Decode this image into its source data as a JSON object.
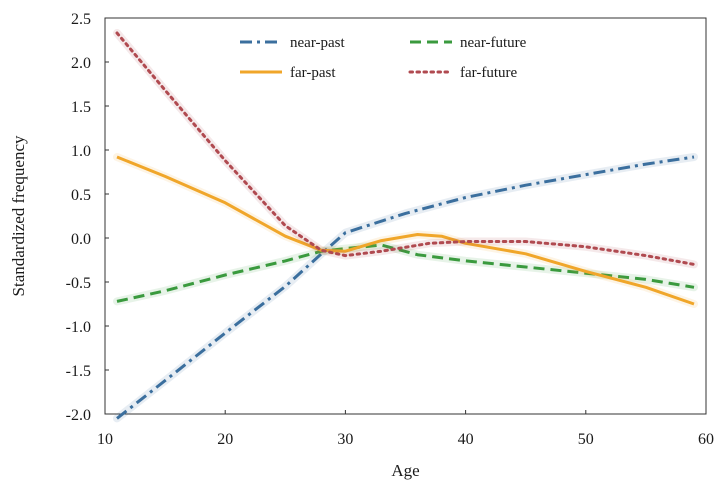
{
  "chart_data": {
    "type": "line",
    "title": "",
    "xlabel": "Age",
    "ylabel": "Standardized frequency",
    "xlim": [
      10,
      60
    ],
    "ylim": [
      -2.0,
      2.5
    ],
    "xticks": [
      "10",
      "20",
      "30",
      "40",
      "50",
      "60"
    ],
    "yticks": [
      "2.5",
      "2.0",
      "1.5",
      "1.0",
      "0.5",
      "0.0",
      "-0.5",
      "-1.0",
      "-1.5",
      "-2.0"
    ],
    "grid": false,
    "legend_position": "top-center",
    "series": [
      {
        "name": "near-past",
        "color": "#3b6f9e",
        "dash": "dash-dot",
        "x": [
          11,
          15,
          20,
          25,
          28,
          30,
          35,
          40,
          45,
          50,
          55,
          59
        ],
        "y": [
          -2.05,
          -1.62,
          -1.08,
          -0.55,
          -0.18,
          0.06,
          0.28,
          0.46,
          0.6,
          0.72,
          0.84,
          0.92
        ]
      },
      {
        "name": "near-future",
        "color": "#3a9a3e",
        "dash": "dashed",
        "x": [
          11,
          15,
          20,
          25,
          28,
          30,
          33,
          36,
          40,
          45,
          50,
          55,
          59
        ],
        "y": [
          -0.72,
          -0.6,
          -0.42,
          -0.26,
          -0.15,
          -0.12,
          -0.08,
          -0.19,
          -0.26,
          -0.33,
          -0.4,
          -0.47,
          -0.56
        ]
      },
      {
        "name": "far-past",
        "color": "#f0a62a",
        "dash": "solid",
        "x": [
          11,
          15,
          20,
          25,
          28,
          30,
          33,
          36,
          38,
          40,
          45,
          50,
          55,
          59
        ],
        "y": [
          0.92,
          0.7,
          0.4,
          0.02,
          -0.14,
          -0.15,
          -0.03,
          0.04,
          0.02,
          -0.06,
          -0.18,
          -0.38,
          -0.56,
          -0.75
        ]
      },
      {
        "name": "far-future",
        "color": "#b04a50",
        "dash": "dotted",
        "x": [
          11,
          15,
          20,
          25,
          28,
          30,
          33,
          37,
          40,
          45,
          50,
          55,
          59
        ],
        "y": [
          2.33,
          1.68,
          0.88,
          0.14,
          -0.14,
          -0.2,
          -0.15,
          -0.06,
          -0.04,
          -0.04,
          -0.1,
          -0.2,
          -0.3
        ]
      }
    ]
  }
}
